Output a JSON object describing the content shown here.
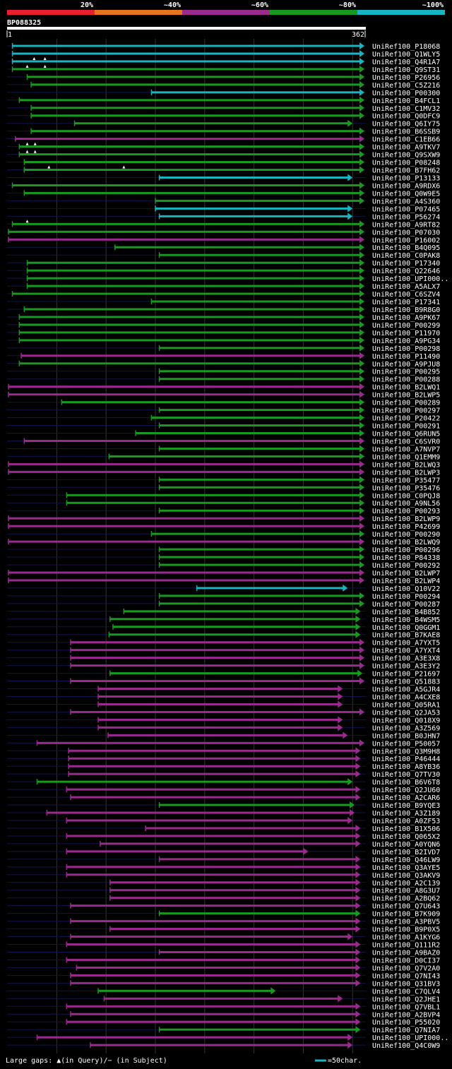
{
  "chart_data": {
    "type": "alignment-overview",
    "query_id": "BP088325",
    "query_start": 1,
    "query_end": 362,
    "query_start_label": "1",
    "query_end_label": "362",
    "legend": [
      "20%",
      "~40%",
      "~60%",
      "~80%",
      "~100%"
    ],
    "legend_colors": [
      "#e8202e",
      "#e8741e",
      "#9b2a8e",
      "#179a1f",
      "#17b5c2"
    ],
    "footer_left": "Large gaps: ▲(in Query)/− (in Subject)",
    "footer_right": "=50char.",
    "hits": [
      [
        "UniRef100_P18068",
        5,
        362,
        4,
        []
      ],
      [
        "UniRef100_Q1WLY5",
        5,
        362,
        4,
        []
      ],
      [
        "UniRef100_Q4R1A7",
        5,
        362,
        4,
        [
          27,
          38
        ]
      ],
      [
        "UniRef100_Q9ST31",
        5,
        362,
        3,
        [
          20,
          38
        ]
      ],
      [
        "UniRef100_P26956",
        20,
        362,
        3,
        []
      ],
      [
        "UniRef100_C5Z216",
        24,
        362,
        3,
        []
      ],
      [
        "UniRef100_P00300",
        146,
        362,
        4,
        []
      ],
      [
        "UniRef100_B4FCL1",
        12,
        362,
        3,
        []
      ],
      [
        "UniRef100_C1MV32",
        24,
        362,
        3,
        []
      ],
      [
        "UniRef100_Q0DFC9",
        24,
        362,
        3,
        []
      ],
      [
        "UniRef100_Q6IY75",
        68,
        350,
        3,
        []
      ],
      [
        "UniRef100_B6SSB9",
        24,
        362,
        3,
        []
      ],
      [
        "UniRef100_C1EB66",
        8,
        362,
        2,
        []
      ],
      [
        "UniRef100_A9TKV7",
        12,
        362,
        3,
        [
          20,
          28
        ]
      ],
      [
        "UniRef100_Q9SXW9",
        12,
        362,
        3,
        [
          20,
          28
        ]
      ],
      [
        "UniRef100_P08248",
        17,
        362,
        3,
        []
      ],
      [
        "UniRef100_B7FH62",
        17,
        362,
        3,
        [
          42,
          118
        ]
      ],
      [
        "UniRef100_P13133",
        154,
        350,
        4,
        []
      ],
      [
        "UniRef100_A9RDX6",
        5,
        362,
        3,
        []
      ],
      [
        "UniRef100_Q0W9E5",
        17,
        362,
        3,
        []
      ],
      [
        "UniRef100_A4S360",
        150,
        362,
        3,
        []
      ],
      [
        "UniRef100_P07465",
        150,
        350,
        4,
        []
      ],
      [
        "UniRef100_P56274",
        154,
        350,
        4,
        []
      ],
      [
        "UniRef100_A9RT82",
        5,
        362,
        3,
        [
          20
        ]
      ],
      [
        "UniRef100_P07030",
        1,
        362,
        3,
        []
      ],
      [
        "UniRef100_P16002",
        1,
        362,
        2,
        []
      ],
      [
        "UniRef100_B4Q095",
        109,
        362,
        3,
        []
      ],
      [
        "UniRef100_C0PAK8",
        154,
        362,
        3,
        []
      ],
      [
        "UniRef100_P17340",
        20,
        362,
        3,
        []
      ],
      [
        "UniRef100_Q22646",
        20,
        362,
        3,
        []
      ],
      [
        "UniRef100_UPI000..",
        20,
        362,
        3,
        []
      ],
      [
        "UniRef100_A5ALX7",
        20,
        362,
        3,
        []
      ],
      [
        "UniRef100_C6SZV4",
        5,
        362,
        3,
        []
      ],
      [
        "UniRef100_P17341",
        146,
        362,
        3,
        []
      ],
      [
        "UniRef100_B9R8G0",
        17,
        362,
        3,
        []
      ],
      [
        "UniRef100_A9PK67",
        12,
        362,
        3,
        []
      ],
      [
        "UniRef100_P00299",
        12,
        362,
        3,
        []
      ],
      [
        "UniRef100_P11970",
        12,
        362,
        3,
        []
      ],
      [
        "UniRef100_A9PG34",
        12,
        362,
        3,
        []
      ],
      [
        "UniRef100_P00298",
        154,
        362,
        3,
        []
      ],
      [
        "UniRef100_P11490",
        14,
        362,
        2,
        []
      ],
      [
        "UniRef100_A9PJU8",
        12,
        362,
        3,
        []
      ],
      [
        "UniRef100_P00295",
        154,
        362,
        3,
        []
      ],
      [
        "UniRef100_P00288",
        154,
        362,
        3,
        []
      ],
      [
        "UniRef100_B2LWQ1",
        1,
        362,
        2,
        []
      ],
      [
        "UniRef100_B2LWP5",
        1,
        362,
        2,
        []
      ],
      [
        "UniRef100_P00289",
        55,
        362,
        3,
        []
      ],
      [
        "UniRef100_P00297",
        154,
        362,
        3,
        []
      ],
      [
        "UniRef100_P20422",
        146,
        362,
        3,
        []
      ],
      [
        "UniRef100_P00291",
        154,
        362,
        3,
        []
      ],
      [
        "UniRef100_Q6RUN5",
        130,
        362,
        3,
        []
      ],
      [
        "UniRef100_C6SVR0",
        17,
        362,
        2,
        []
      ],
      [
        "UniRef100_A7NVP7",
        154,
        362,
        3,
        []
      ],
      [
        "UniRef100_Q1EMM9",
        103,
        362,
        3,
        []
      ],
      [
        "UniRef100_B2LWQ3",
        1,
        362,
        2,
        []
      ],
      [
        "UniRef100_B2LWP3",
        1,
        362,
        2,
        []
      ],
      [
        "UniRef100_P35477",
        154,
        362,
        3,
        []
      ],
      [
        "UniRef100_P35476",
        154,
        362,
        3,
        []
      ],
      [
        "UniRef100_C0PQJ8",
        60,
        362,
        3,
        []
      ],
      [
        "UniRef100_A9NL56",
        60,
        362,
        3,
        []
      ],
      [
        "UniRef100_P00293",
        154,
        362,
        3,
        []
      ],
      [
        "UniRef100_B2LWP9",
        1,
        362,
        2,
        []
      ],
      [
        "UniRef100_P42699",
        1,
        362,
        2,
        []
      ],
      [
        "UniRef100_P00290",
        146,
        362,
        3,
        []
      ],
      [
        "UniRef100_B2LWQ9",
        1,
        362,
        2,
        []
      ],
      [
        "UniRef100_P00296",
        154,
        362,
        3,
        []
      ],
      [
        "UniRef100_P84338",
        154,
        362,
        3,
        []
      ],
      [
        "UniRef100_P00292",
        154,
        362,
        3,
        []
      ],
      [
        "UniRef100_B2LWP7",
        1,
        362,
        2,
        []
      ],
      [
        "UniRef100_B2LWP4",
        1,
        362,
        2,
        []
      ],
      [
        "UniRef100_Q10V22",
        192,
        345,
        4,
        []
      ],
      [
        "UniRef100_P00294",
        154,
        362,
        3,
        []
      ],
      [
        "UniRef100_P00287",
        154,
        362,
        3,
        []
      ],
      [
        "UniRef100_B4B852",
        118,
        358,
        3,
        []
      ],
      [
        "UniRef100_B4WSM5",
        104,
        358,
        3,
        []
      ],
      [
        "UniRef100_Q0GGM1",
        107,
        358,
        3,
        []
      ],
      [
        "UniRef100_B7KAE8",
        103,
        358,
        3,
        []
      ],
      [
        "UniRef100_A7YXT5",
        64,
        362,
        2,
        []
      ],
      [
        "UniRef100_A7YXT4",
        64,
        362,
        2,
        []
      ],
      [
        "UniRef100_A3E3X8",
        64,
        362,
        2,
        []
      ],
      [
        "UniRef100_A3E3Y2",
        64,
        362,
        2,
        []
      ],
      [
        "UniRef100_P21697",
        104,
        360,
        3,
        []
      ],
      [
        "UniRef100_Q51883",
        64,
        362,
        2,
        []
      ],
      [
        "UniRef100_A5GJR4",
        92,
        340,
        2,
        []
      ],
      [
        "UniRef100_A4CXE8",
        92,
        340,
        2,
        []
      ],
      [
        "UniRef100_Q05RA1",
        92,
        340,
        2,
        []
      ],
      [
        "UniRef100_Q2JA53",
        64,
        362,
        2,
        []
      ],
      [
        "UniRef100_Q018X9",
        92,
        340,
        2,
        []
      ],
      [
        "UniRef100_A3Z569",
        92,
        340,
        2,
        []
      ],
      [
        "UniRef100_B0JHN7",
        102,
        345,
        2,
        []
      ],
      [
        "UniRef100_P50057",
        30,
        362,
        2,
        []
      ],
      [
        "UniRef100_Q3M9H8",
        62,
        358,
        2,
        []
      ],
      [
        "UniRef100_P46444",
        62,
        358,
        2,
        []
      ],
      [
        "UniRef100_A8YB36",
        62,
        358,
        2,
        []
      ],
      [
        "UniRef100_Q7TV30",
        62,
        358,
        2,
        []
      ],
      [
        "UniRef100_B6V6T8",
        30,
        350,
        3,
        []
      ],
      [
        "UniRef100_Q2JU60",
        60,
        358,
        2,
        []
      ],
      [
        "UniRef100_A2CAR6",
        64,
        358,
        2,
        []
      ],
      [
        "UniRef100_B9YQE3",
        154,
        352,
        3,
        []
      ],
      [
        "UniRef100_A3Z189",
        40,
        352,
        2,
        []
      ],
      [
        "UniRef100_A0ZF53",
        60,
        350,
        2,
        []
      ],
      [
        "UniRef100_B1X506",
        140,
        358,
        2,
        []
      ],
      [
        "UniRef100_Q065X2",
        60,
        358,
        2,
        []
      ],
      [
        "UniRef100_A0YQN6",
        94,
        358,
        2,
        []
      ],
      [
        "UniRef100_B2IVD7",
        60,
        305,
        2,
        []
      ],
      [
        "UniRef100_Q46LW9",
        154,
        358,
        2,
        []
      ],
      [
        "UniRef100_Q3AYE5",
        60,
        358,
        2,
        []
      ],
      [
        "UniRef100_Q3AKV9",
        60,
        358,
        2,
        []
      ],
      [
        "UniRef100_A2C139",
        104,
        358,
        2,
        []
      ],
      [
        "UniRef100_A8G3U7",
        104,
        358,
        2,
        []
      ],
      [
        "UniRef100_A2BQ62",
        104,
        358,
        2,
        []
      ],
      [
        "UniRef100_Q7U643",
        64,
        358,
        2,
        []
      ],
      [
        "UniRef100_B7K909",
        154,
        358,
        3,
        []
      ],
      [
        "UniRef100_A3PBV5",
        64,
        358,
        2,
        []
      ],
      [
        "UniRef100_B9P0X5",
        104,
        358,
        2,
        []
      ],
      [
        "UniRef100_A1KYG6",
        64,
        350,
        2,
        []
      ],
      [
        "UniRef100_Q111R2",
        60,
        358,
        2,
        []
      ],
      [
        "UniRef100_A9BAZ0",
        154,
        358,
        2,
        []
      ],
      [
        "UniRef100_D0CI37",
        60,
        358,
        2,
        []
      ],
      [
        "UniRef100_Q7V2A0",
        70,
        358,
        2,
        []
      ],
      [
        "UniRef100_Q7NI43",
        64,
        358,
        2,
        []
      ],
      [
        "UniRef100_Q31BV3",
        64,
        358,
        2,
        []
      ],
      [
        "UniRef100_C7QLV4",
        92,
        272,
        3,
        []
      ],
      [
        "UniRef100_Q2JHE1",
        98,
        340,
        2,
        []
      ],
      [
        "UniRef100_Q7VBL1",
        60,
        358,
        2,
        []
      ],
      [
        "UniRef100_A2BVP4",
        64,
        358,
        2,
        []
      ],
      [
        "UniRef100_P55020",
        60,
        358,
        2,
        []
      ],
      [
        "UniRef100_Q7NIA7",
        154,
        358,
        3,
        []
      ],
      [
        "UniRef100_UPI000..",
        30,
        350,
        2,
        []
      ],
      [
        "UniRef100_Q4C0W9",
        84,
        350,
        2,
        []
      ]
    ]
  }
}
